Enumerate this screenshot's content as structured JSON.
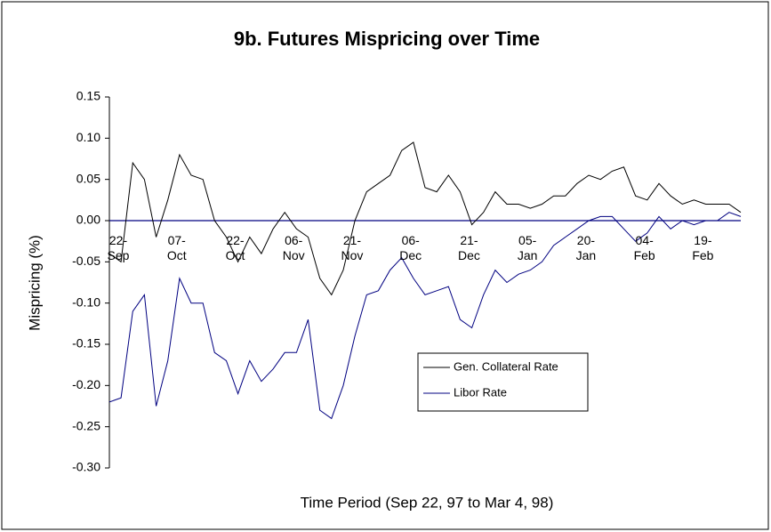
{
  "chart_data": {
    "type": "line",
    "title": "9b. Futures Mispricing over Time",
    "xlabel": "Time Period (Sep 22, 97  to  Mar 4, 98)",
    "ylabel": "Mispricing (%)",
    "categories": [
      "22-\nSep",
      null,
      null,
      null,
      null,
      "07-\nOct",
      null,
      null,
      null,
      null,
      "22-\nOct",
      null,
      null,
      null,
      null,
      "06-\nNov",
      null,
      null,
      null,
      null,
      "21-\nNov",
      null,
      null,
      null,
      null,
      "06-\nDec",
      null,
      null,
      null,
      null,
      "21-\nDec",
      null,
      null,
      null,
      null,
      "05-\nJan",
      null,
      null,
      null,
      null,
      "20-\nJan",
      null,
      null,
      null,
      null,
      "04-\nFeb",
      null,
      null,
      null,
      null,
      "19-\nFeb",
      null,
      null,
      null,
      null
    ],
    "series": [
      {
        "name": "Gen. Collateral Rate",
        "color": "#000000",
        "values": [
          -0.04,
          -0.05,
          0.07,
          0.05,
          -0.02,
          0.025,
          0.08,
          0.055,
          0.05,
          0.0,
          -0.02,
          -0.05,
          -0.02,
          -0.04,
          -0.01,
          0.01,
          -0.01,
          -0.02,
          -0.07,
          -0.09,
          -0.06,
          0.0,
          0.035,
          0.045,
          0.055,
          0.085,
          0.095,
          0.04,
          0.035,
          0.055,
          0.035,
          -0.005,
          0.01,
          0.035,
          0.02,
          0.02,
          0.015,
          0.02,
          0.03,
          0.03,
          0.045,
          0.055,
          0.05,
          0.06,
          0.065,
          0.03,
          0.025,
          0.045,
          0.03,
          0.02,
          0.025,
          0.02,
          0.02,
          0.02,
          0.01
        ]
      },
      {
        "name": "Libor Rate",
        "color": "#000080",
        "values": [
          -0.22,
          -0.215,
          -0.11,
          -0.09,
          -0.225,
          -0.17,
          -0.07,
          -0.1,
          -0.1,
          -0.16,
          -0.17,
          -0.21,
          -0.17,
          -0.195,
          -0.18,
          -0.16,
          -0.16,
          -0.12,
          -0.23,
          -0.24,
          -0.2,
          -0.14,
          -0.09,
          -0.085,
          -0.06,
          -0.045,
          -0.07,
          -0.09,
          -0.085,
          -0.08,
          -0.12,
          -0.13,
          -0.09,
          -0.06,
          -0.075,
          -0.065,
          -0.06,
          -0.05,
          -0.03,
          -0.02,
          -0.01,
          0.0,
          0.005,
          0.005,
          -0.01,
          -0.025,
          -0.015,
          0.005,
          -0.01,
          0.0,
          -0.005,
          0.0,
          0.0,
          0.01,
          0.005
        ]
      }
    ],
    "ylim": [
      -0.3,
      0.15
    ],
    "yticks": [
      0.15,
      {
        "value": 0.1,
        "label": "0.10"
      },
      {
        "value": 0.05,
        "label": "0.05"
      },
      {
        "value": 0.0,
        "label": "0.00"
      },
      -0.05,
      {
        "value": -0.1,
        "label": "-0.10"
      },
      -0.15,
      {
        "value": -0.2,
        "label": "-0.20"
      },
      -0.25,
      {
        "value": -0.3,
        "label": "-0.30"
      }
    ],
    "grid": false,
    "zero_line_color": "#000080"
  }
}
